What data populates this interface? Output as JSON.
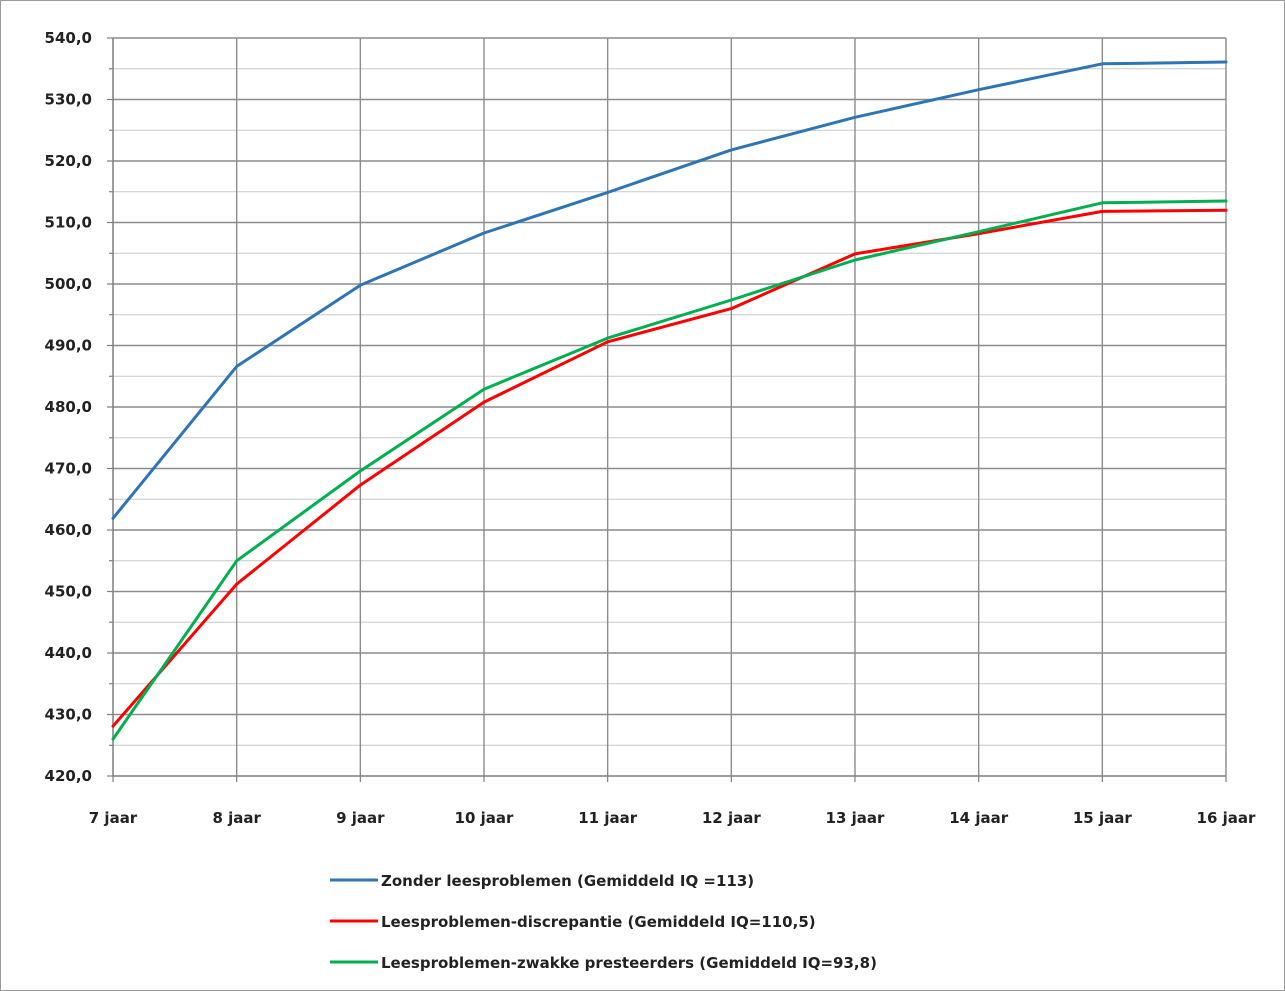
{
  "chart_data": {
    "type": "line",
    "title": "",
    "xlabel": "",
    "ylabel": "",
    "categories": [
      "7 jaar",
      "8 jaar",
      "9 jaar",
      "10 jaar",
      "11 jaar",
      "12 jaar",
      "13 jaar",
      "14 jaar",
      "15 jaar",
      "16 jaar"
    ],
    "ylim": [
      420,
      540
    ],
    "y_major_step": 10,
    "y_minor_step": 5,
    "y_tick_labels": [
      "540,0",
      "530,0",
      "520,0",
      "510,0",
      "500,0",
      "490,0",
      "480,0",
      "470,0",
      "460,0",
      "450,0",
      "440,0",
      "430,0",
      "420,0"
    ],
    "grid": true,
    "legend_position": "bottom",
    "series": [
      {
        "name": "Zonder leesproblemen (Gemiddeld IQ =113)",
        "color": "#2e75b6",
        "values": [
          461.9,
          486.6,
          499.8,
          508.3,
          514.9,
          521.8,
          527.1,
          531.6,
          535.8,
          536.1
        ]
      },
      {
        "name": "Leesproblemen-discrepantie (Gemiddeld IQ=110,5)",
        "color": "#ff0000",
        "values": [
          428.1,
          451.2,
          467.3,
          480.8,
          490.6,
          496.0,
          504.9,
          508.2,
          511.8,
          512.0
        ]
      },
      {
        "name": "Leesproblemen-zwakke presteerders (Gemiddeld IQ=93,8)",
        "color": "#00b050",
        "values": [
          426.0,
          455.0,
          469.6,
          482.9,
          491.2,
          497.4,
          503.9,
          508.5,
          513.2,
          513.5
        ]
      }
    ]
  }
}
